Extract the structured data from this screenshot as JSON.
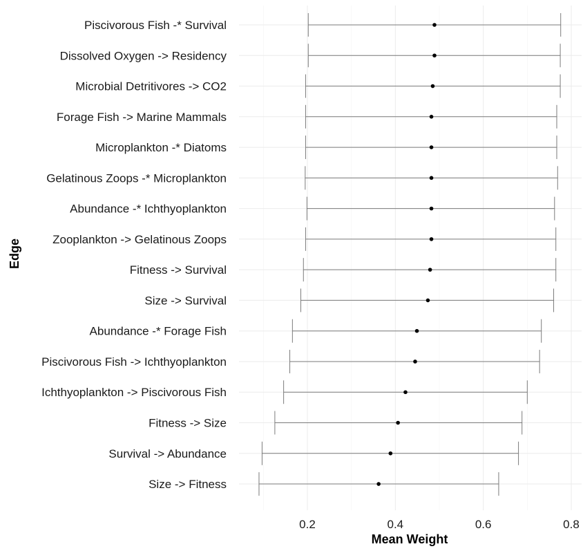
{
  "chart_data": {
    "type": "errorbar",
    "title": "",
    "xlabel": "Mean Weight",
    "ylabel": "Edge",
    "xlim": [
      0.05,
      0.85
    ],
    "xticks": [
      0.2,
      0.4,
      0.6,
      0.8
    ],
    "xtick_labels": [
      "0.2",
      "0.4",
      "0.6",
      "0.8"
    ],
    "grid": true,
    "legend": "none",
    "colors": {
      "point": "#000000",
      "errorbar": "#7a7a7a",
      "grid": "#ebebeb"
    },
    "categories": [
      "Piscivorous Fish -* Survival",
      "Dissolved Oxygen -> Residency",
      "Microbial Detritivores -> CO2",
      "Forage Fish -> Marine Mammals",
      "Microplankton -* Diatoms",
      "Gelatinous Zoops -* Microplankton",
      "Abundance -* Ichthyoplankton",
      "Zooplankton -> Gelatinous Zoops",
      "Fitness -> Survival",
      "Size -> Survival",
      "Abundance -* Forage Fish",
      "Piscivorous Fish -> Ichthyoplankton",
      "Ichthyoplankton -> Piscivorous Fish",
      "Fitness -> Size",
      "Survival -> Abundance",
      "Size -> Fitness"
    ],
    "mean": [
      0.489,
      0.489,
      0.485,
      0.482,
      0.482,
      0.482,
      0.482,
      0.482,
      0.479,
      0.474,
      0.449,
      0.445,
      0.423,
      0.406,
      0.389,
      0.362
    ],
    "lower": [
      0.202,
      0.202,
      0.196,
      0.196,
      0.196,
      0.195,
      0.199,
      0.196,
      0.191,
      0.185,
      0.166,
      0.16,
      0.146,
      0.126,
      0.097,
      0.09
    ],
    "upper": [
      0.776,
      0.775,
      0.775,
      0.767,
      0.767,
      0.769,
      0.762,
      0.765,
      0.765,
      0.76,
      0.732,
      0.728,
      0.7,
      0.688,
      0.68,
      0.635
    ]
  }
}
